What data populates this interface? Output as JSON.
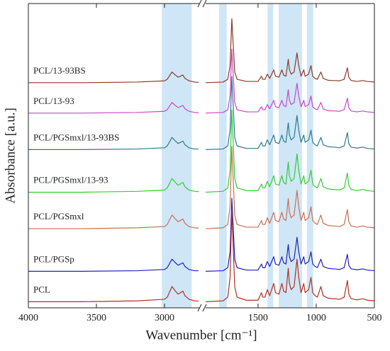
{
  "chart_data": {
    "type": "line",
    "xlabel": "Wavenumber [cm⁻¹]",
    "ylabel": "Absorbance [a.u.]",
    "ylim": [
      0,
      100
    ],
    "segments": [
      {
        "xlim": [
          4000,
          2750
        ],
        "xticks": [
          4000,
          3500,
          3000
        ]
      },
      {
        "xlim": [
          1950,
          500
        ],
        "xticks": [
          1500,
          1000,
          500
        ]
      }
    ],
    "bands": [
      [
        3020,
        2800
      ],
      [
        1835,
        1769
      ],
      [
        1418,
        1370
      ],
      [
        1322,
        1122
      ],
      [
        1080,
        1026
      ]
    ],
    "band_color": "#cfe6f7",
    "x": [
      4000,
      3600,
      3200,
      3000,
      2980,
      2945,
      2920,
      2900,
      2865,
      2850,
      2820,
      2780,
      2750,
      1950,
      1800,
      1760,
      1740,
      1725,
      1715,
      1700,
      1680,
      1600,
      1500,
      1470,
      1460,
      1440,
      1420,
      1400,
      1365,
      1350,
      1320,
      1295,
      1280,
      1260,
      1240,
      1230,
      1215,
      1190,
      1165,
      1150,
      1130,
      1107,
      1095,
      1065,
      1045,
      1030,
      1010,
      990,
      960,
      940,
      900,
      860,
      840,
      800,
      760,
      732,
      720,
      700,
      650,
      600,
      560,
      500
    ],
    "series": [
      {
        "name": "PCL/13-93BS",
        "color": "#8b3a2a",
        "values": [
          74,
          74,
          74.2,
          74.6,
          75.1,
          77.5,
          76.5,
          75.8,
          76.5,
          75.4,
          74.6,
          74.2,
          74.1,
          74,
          74.2,
          75.1,
          79.6,
          95,
          88,
          77.5,
          75.1,
          74.4,
          74.4,
          76.1,
          75.1,
          75.1,
          76.8,
          75.4,
          78.2,
          76.1,
          75.8,
          78.2,
          76.5,
          76.1,
          81.7,
          78.2,
          76.8,
          77.5,
          83.8,
          79.6,
          76.1,
          78.2,
          76.1,
          76.8,
          79.6,
          76.1,
          75.4,
          75.1,
          77.5,
          75.4,
          74.8,
          74.7,
          74.7,
          74.6,
          75.1,
          78.9,
          75.8,
          74.7,
          74.4,
          74.7,
          74.4,
          74.2
        ]
      },
      {
        "name": "PCL/13-93",
        "color": "#cc44cc",
        "values": [
          64,
          64,
          64.2,
          64.6,
          65.1,
          67.5,
          66.5,
          65.8,
          66.5,
          65.4,
          64.6,
          64.2,
          64.1,
          64,
          64.2,
          65.1,
          69.6,
          85,
          78,
          67.5,
          65.1,
          64.4,
          64.4,
          66.1,
          65.1,
          65.1,
          66.8,
          65.4,
          68.2,
          66.1,
          65.8,
          68.2,
          66.5,
          66.1,
          71.7,
          68.2,
          66.8,
          67.5,
          73.8,
          69.6,
          66.1,
          68.2,
          66.1,
          66.8,
          69.6,
          66.1,
          65.4,
          65.1,
          67.5,
          65.4,
          64.8,
          64.7,
          64.7,
          64.6,
          65.1,
          68.9,
          65.8,
          64.7,
          64.4,
          64.7,
          64.4,
          64.2
        ]
      },
      {
        "name": "PCL/PGSmxl/13-93BS",
        "color": "#2a7a8c",
        "values": [
          52,
          52,
          52.2,
          52.6,
          53.2,
          56,
          54.8,
          54,
          54.8,
          53.6,
          52.6,
          52.2,
          52.2,
          52,
          52.2,
          53.2,
          58.4,
          76,
          68,
          56,
          53.2,
          52.4,
          52.4,
          54.4,
          53.2,
          53.2,
          55.2,
          53.6,
          56.8,
          54.4,
          54,
          56.8,
          54.8,
          54.4,
          60.8,
          56.8,
          55.2,
          56,
          63.2,
          58.4,
          54.4,
          56.8,
          54.4,
          55.2,
          58.4,
          54.4,
          53.6,
          53.2,
          56,
          53.6,
          53,
          52.8,
          52.8,
          52.6,
          53.2,
          57.6,
          54,
          52.8,
          52.5,
          52.8,
          52.4,
          52.2
        ]
      },
      {
        "name": "PCL/PGSmxl/13-93",
        "color": "#33cc33",
        "values": [
          38,
          38,
          38.3,
          38.7,
          39.4,
          42.5,
          41.2,
          40.3,
          41.2,
          39.8,
          38.7,
          38.3,
          38.2,
          38,
          38.3,
          39.4,
          45.2,
          65,
          56,
          42.5,
          39.4,
          38.5,
          38.5,
          40.7,
          39.4,
          39.4,
          41.6,
          39.8,
          43.4,
          40.7,
          40.3,
          43.4,
          41.2,
          40.7,
          47.9,
          43.4,
          41.6,
          42.5,
          50.6,
          45.2,
          40.7,
          43.4,
          40.7,
          41.6,
          45.2,
          40.7,
          39.8,
          39.4,
          42.5,
          39.8,
          39.1,
          38.9,
          38.9,
          38.7,
          39.4,
          44.3,
          40.3,
          38.9,
          38.5,
          38.9,
          38.5,
          38.3
        ]
      },
      {
        "name": "PCL/PGSmxl",
        "color": "#c87050",
        "values": [
          26,
          26,
          26.3,
          26.7,
          27.4,
          30.5,
          29.2,
          28.3,
          29.2,
          27.8,
          26.7,
          26.3,
          26.2,
          26,
          26.3,
          27.4,
          33.2,
          53,
          44,
          30.5,
          27.4,
          26.5,
          26.5,
          28.7,
          27.4,
          27.4,
          29.6,
          27.8,
          31.4,
          28.7,
          28.3,
          31.4,
          29.2,
          28.7,
          35.9,
          31.4,
          29.6,
          30.5,
          38.6,
          33.2,
          28.7,
          31.4,
          28.7,
          29.6,
          33.2,
          28.7,
          27.8,
          27.4,
          30.5,
          27.8,
          27.1,
          26.9,
          26.9,
          26.7,
          27.4,
          32.3,
          28.3,
          26.9,
          26.5,
          26.9,
          26.5,
          26.3
        ]
      },
      {
        "name": "PCL/PGSp",
        "color": "#2020c0",
        "values": [
          12,
          12,
          12.2,
          12.6,
          13.2,
          16,
          14.8,
          14,
          14.8,
          13.6,
          12.6,
          12.2,
          12.2,
          12,
          12.2,
          13.2,
          18.4,
          36,
          28,
          16,
          13.2,
          12.4,
          12.4,
          14.4,
          13.2,
          13.2,
          15.2,
          13.6,
          16.8,
          14.4,
          14,
          16.8,
          14.8,
          14.4,
          20.8,
          16.8,
          15.2,
          16,
          23.2,
          18.4,
          14.4,
          16.8,
          14.4,
          15.2,
          18.4,
          14.4,
          13.6,
          13.2,
          16,
          13.6,
          13,
          12.8,
          12.8,
          12.6,
          13.2,
          17.6,
          14,
          12.8,
          12.5,
          12.8,
          12.4,
          12.2
        ]
      },
      {
        "name": "PCL",
        "color": "#b03020",
        "values": [
          2,
          2,
          2.3,
          2.8,
          3.5,
          7,
          5.5,
          4.5,
          5.5,
          4,
          2.8,
          2.3,
          2.2,
          2,
          2.3,
          3.5,
          10,
          32,
          22,
          7,
          3.5,
          2.5,
          2.5,
          5,
          3.5,
          3.5,
          6,
          4,
          8,
          5,
          4.5,
          8,
          5.5,
          5,
          13,
          8,
          6,
          7,
          16,
          10,
          5,
          8,
          5,
          6,
          10,
          5,
          4,
          3.5,
          7,
          4,
          3.2,
          3,
          3,
          2.8,
          3.5,
          9,
          4.5,
          3,
          2.6,
          3,
          2.5,
          2.3
        ]
      }
    ]
  }
}
